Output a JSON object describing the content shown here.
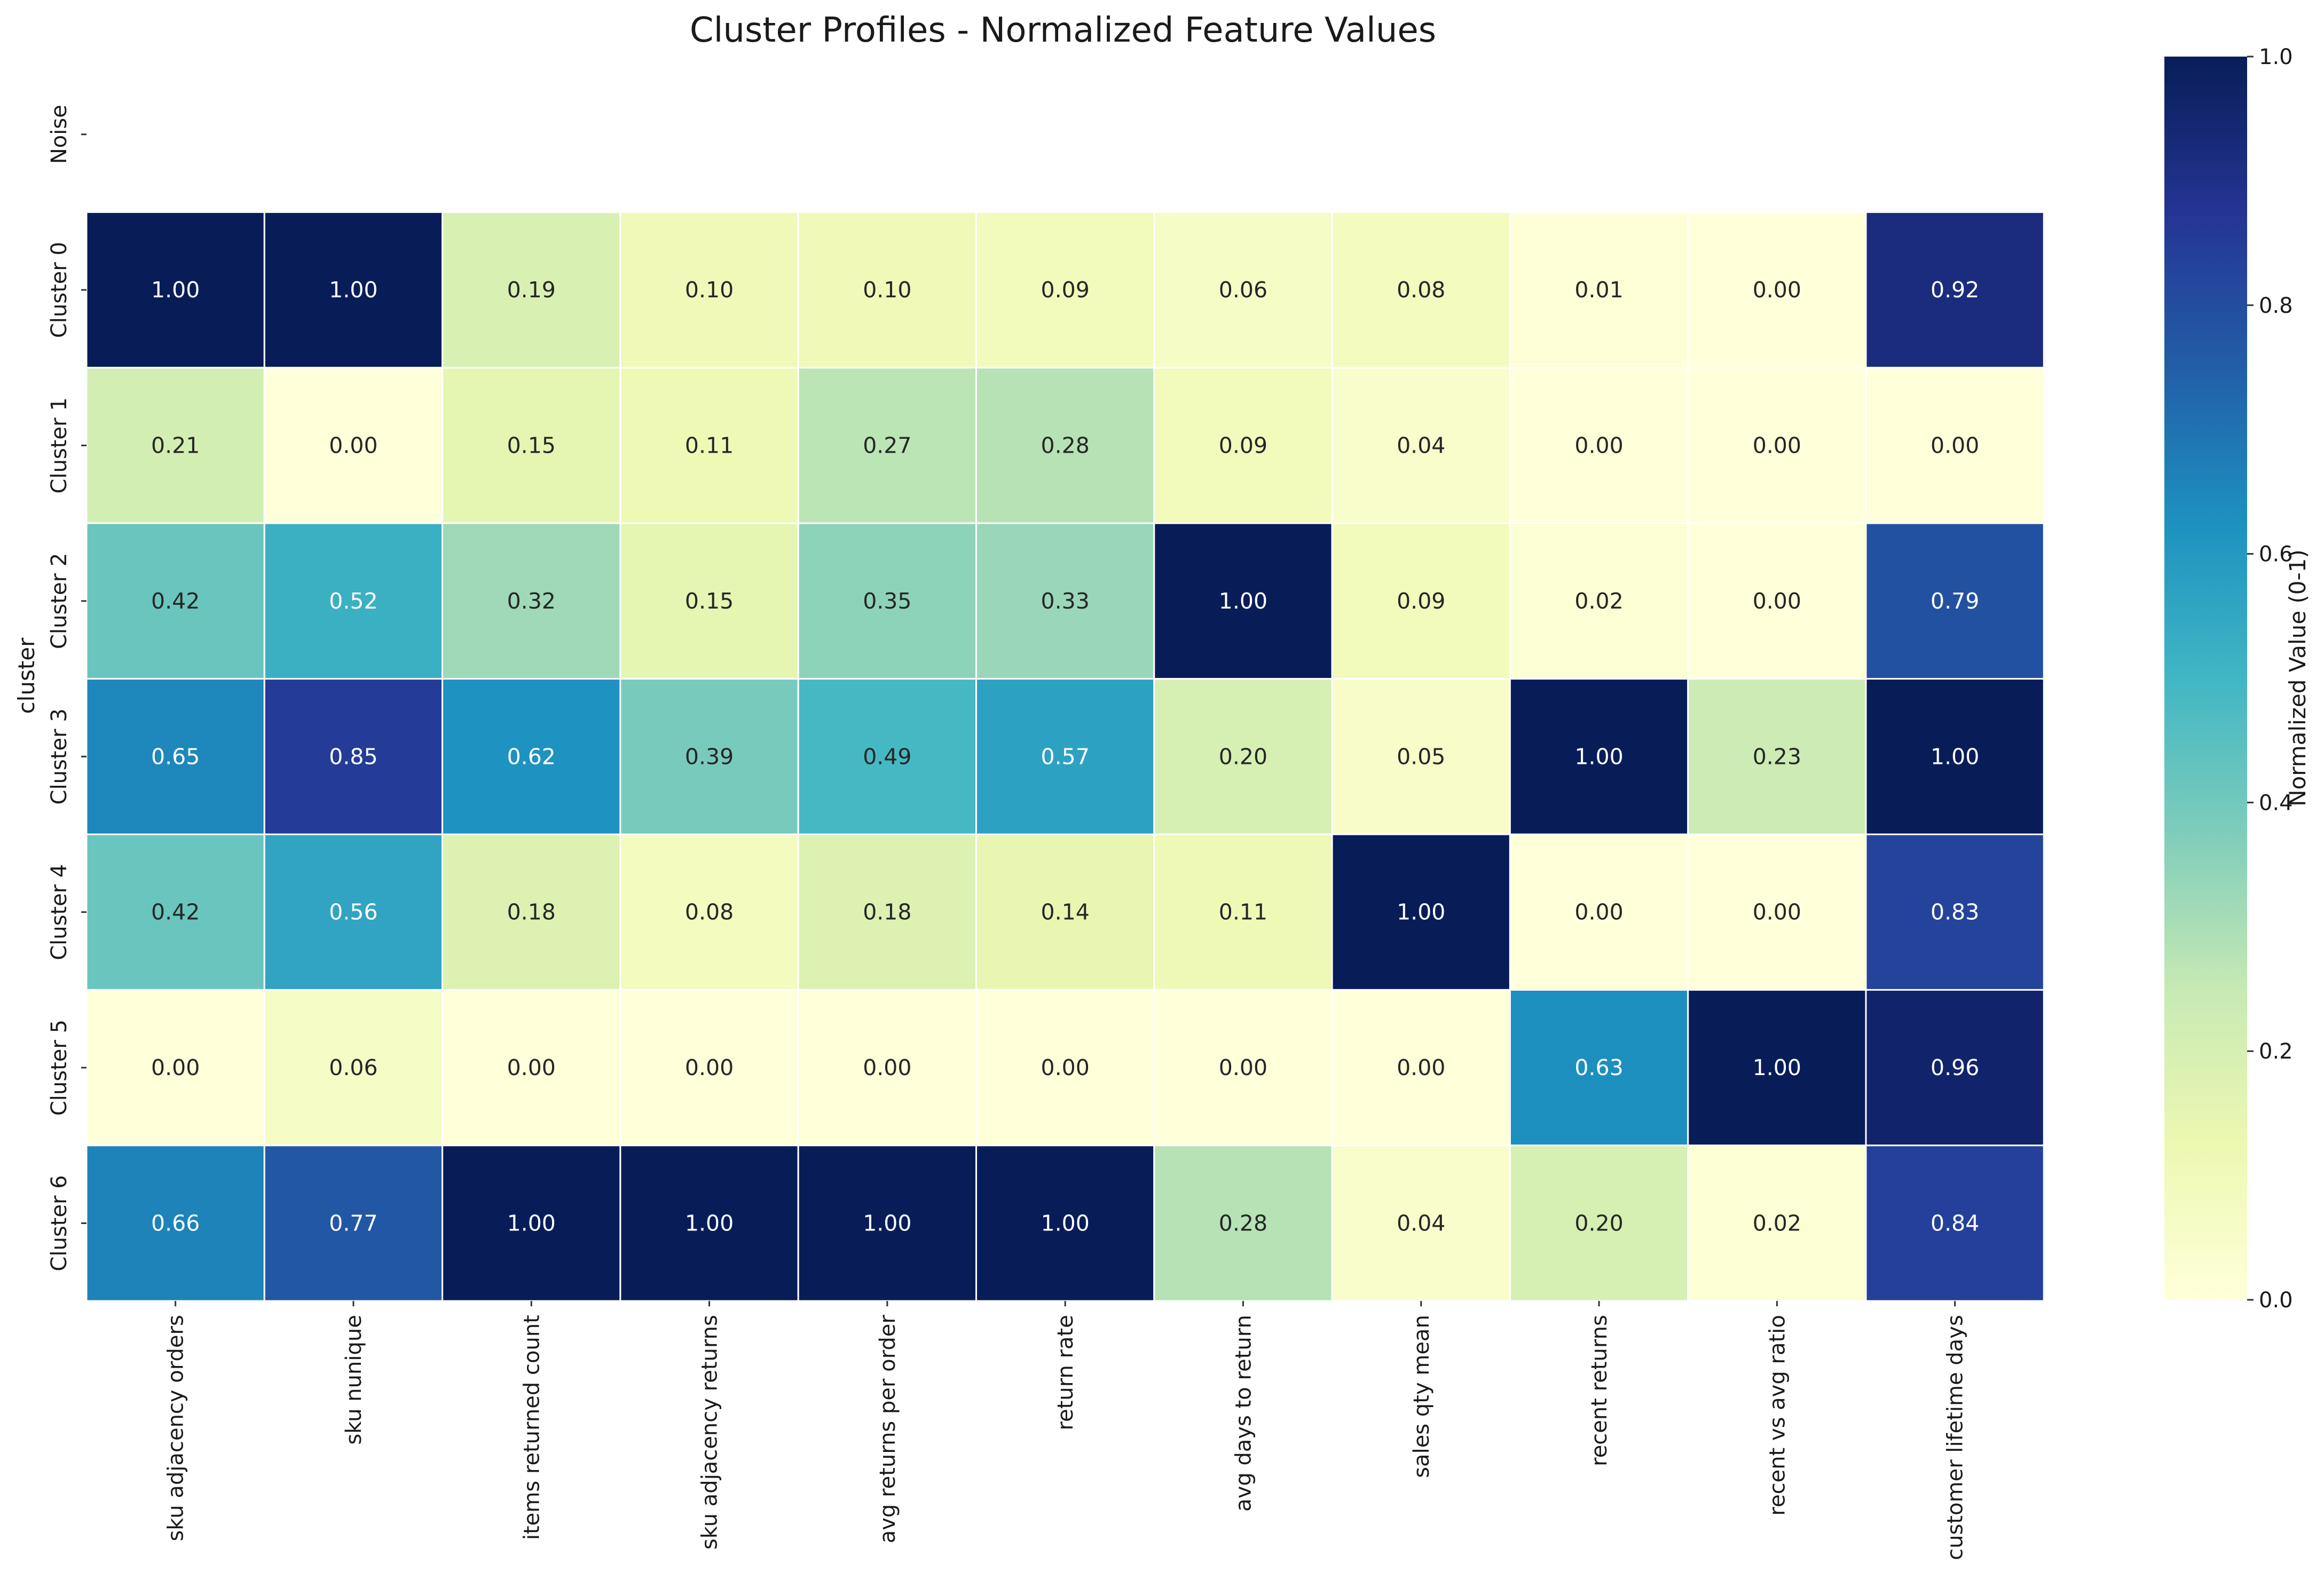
{
  "chart_data": {
    "type": "heatmap",
    "title": "Cluster Profiles - Normalized Feature Values",
    "ylabel": "cluster",
    "xlabel": "",
    "rows": [
      "Noise",
      "Cluster 0",
      "Cluster 1",
      "Cluster 2",
      "Cluster 3",
      "Cluster 4",
      "Cluster 5",
      "Cluster 6"
    ],
    "columns": [
      "sku adjacency orders",
      "sku nunique",
      "items returned count",
      "sku adjacency returns",
      "avg returns per order",
      "return rate",
      "avg days to return",
      "sales qty mean",
      "recent returns",
      "recent vs avg ratio",
      "customer lifetime days"
    ],
    "values": [
      [
        null,
        null,
        null,
        null,
        null,
        null,
        null,
        null,
        null,
        null,
        null
      ],
      [
        1.0,
        1.0,
        0.19,
        0.1,
        0.1,
        0.09,
        0.06,
        0.08,
        0.01,
        0.0,
        0.92
      ],
      [
        0.21,
        0.0,
        0.15,
        0.11,
        0.27,
        0.28,
        0.09,
        0.04,
        0.0,
        0.0,
        0.0
      ],
      [
        0.42,
        0.52,
        0.32,
        0.15,
        0.35,
        0.33,
        1.0,
        0.09,
        0.02,
        0.0,
        0.79
      ],
      [
        0.65,
        0.85,
        0.62,
        0.39,
        0.49,
        0.57,
        0.2,
        0.05,
        1.0,
        0.23,
        1.0
      ],
      [
        0.42,
        0.56,
        0.18,
        0.08,
        0.18,
        0.14,
        0.11,
        1.0,
        0.0,
        0.0,
        0.83
      ],
      [
        0.0,
        0.06,
        0.0,
        0.0,
        0.0,
        0.0,
        0.0,
        0.0,
        0.63,
        1.0,
        0.96
      ],
      [
        0.66,
        0.77,
        1.0,
        1.0,
        1.0,
        1.0,
        0.28,
        0.04,
        0.2,
        0.02,
        0.84
      ]
    ],
    "value_format": "0.00",
    "colormap": "YlGnBu",
    "colorbar": {
      "label": "Normalized Value (0-1)",
      "range": [
        0,
        1
      ],
      "ticks": [
        "0.0",
        "0.2",
        "0.4",
        "0.6",
        "0.8",
        "1.0"
      ]
    }
  }
}
